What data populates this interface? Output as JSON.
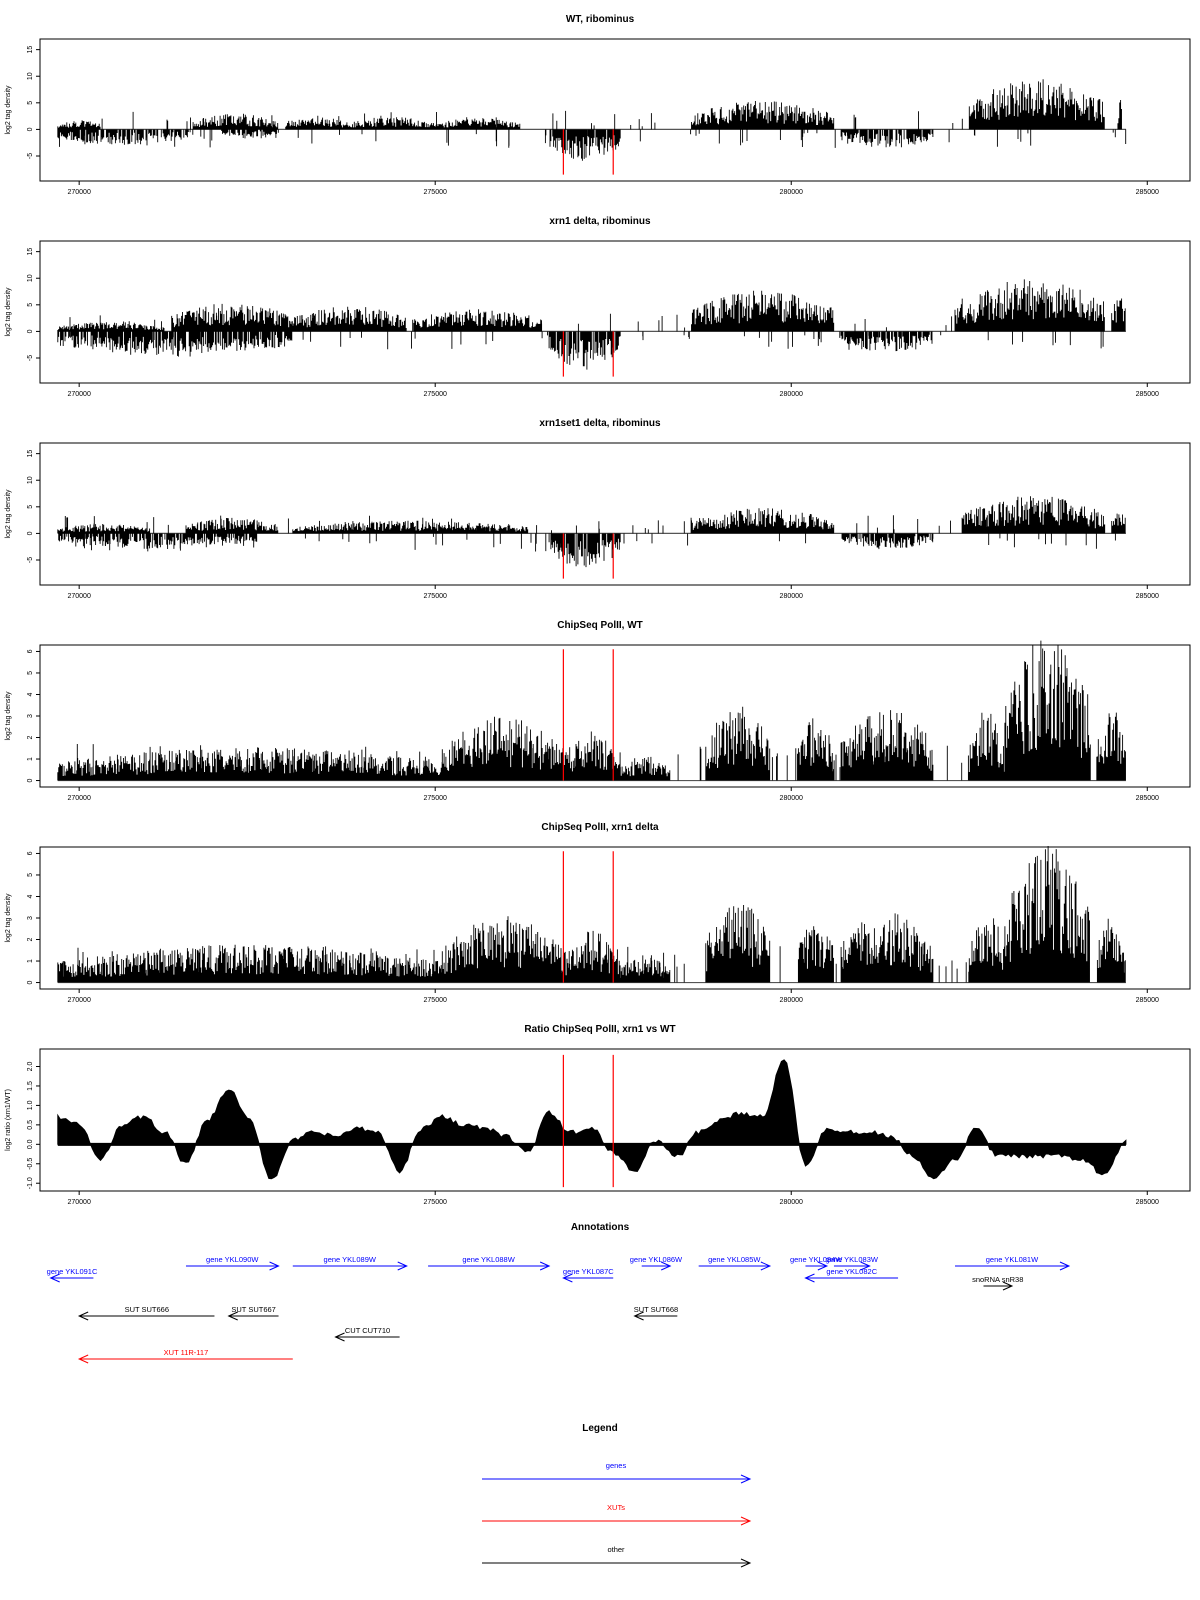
{
  "chart_data": [
    {
      "type": "area",
      "title": "WT, ribominus",
      "ylabel": "log2 tag density",
      "xlim": [
        269450,
        285600
      ],
      "ylim": [
        -9.7,
        17
      ],
      "yticks": [
        -5,
        0,
        5,
        10,
        15
      ],
      "xticks": [
        270000,
        275000,
        280000,
        285000
      ],
      "xtick_labels": [
        "270000",
        "275000",
        "280000",
        "285000"
      ],
      "baseline": 0,
      "red_markers": [
        276800,
        277500
      ],
      "red_marker_range": [
        -8.5,
        0
      ],
      "pos_segments": [
        {
          "x": [
            269700,
            270300
          ],
          "y": 1.5
        },
        {
          "x": [
            271600,
            272800
          ],
          "y": 2.5
        },
        {
          "x": [
            272900,
            273800
          ],
          "y": 2.0
        },
        {
          "x": [
            273800,
            275000
          ],
          "y": 2.0
        },
        {
          "x": [
            275000,
            276200
          ],
          "y": 1.8
        },
        {
          "x": [
            278600,
            280600
          ],
          "y": 4.5
        },
        {
          "x": [
            282500,
            284400
          ],
          "y": 8.0
        },
        {
          "x": [
            284600,
            284650
          ],
          "y": 6.0
        }
      ],
      "neg_segments": [
        {
          "x": [
            269700,
            271600
          ],
          "y": -2.5
        },
        {
          "x": [
            272000,
            272800
          ],
          "y": -1.5
        },
        {
          "x": [
            276600,
            277600
          ],
          "y": -5.0
        },
        {
          "x": [
            280700,
            282000
          ],
          "y": -3.0
        }
      ]
    },
    {
      "type": "area",
      "title": "xrn1 delta, ribominus",
      "ylabel": "log2 tag density",
      "xlim": [
        269450,
        285600
      ],
      "ylim": [
        -9.7,
        17
      ],
      "yticks": [
        -5,
        0,
        5,
        10,
        15
      ],
      "xticks": [
        270000,
        275000,
        280000,
        285000
      ],
      "xtick_labels": [
        "270000",
        "275000",
        "280000",
        "285000"
      ],
      "baseline": 0,
      "red_markers": [
        276800,
        277500
      ],
      "red_marker_range": [
        -8.5,
        0
      ],
      "pos_segments": [
        {
          "x": [
            269700,
            271200
          ],
          "y": 1.5
        },
        {
          "x": [
            271300,
            273000
          ],
          "y": 4.5
        },
        {
          "x": [
            273000,
            274600
          ],
          "y": 4.0
        },
        {
          "x": [
            274700,
            276500
          ],
          "y": 3.5
        },
        {
          "x": [
            278600,
            280600
          ],
          "y": 6.5
        },
        {
          "x": [
            282300,
            284400
          ],
          "y": 8.5
        },
        {
          "x": [
            284500,
            284700
          ],
          "y": 6.0
        }
      ],
      "neg_segments": [
        {
          "x": [
            269700,
            273000
          ],
          "y": -4.0
        },
        {
          "x": [
            276600,
            277600
          ],
          "y": -6.0
        },
        {
          "x": [
            280700,
            282000
          ],
          "y": -3.5
        }
      ]
    },
    {
      "type": "area",
      "title": "xrn1set1 delta, ribominus",
      "ylabel": "log2 tag density",
      "xlim": [
        269450,
        285600
      ],
      "ylim": [
        -9.7,
        17
      ],
      "yticks": [
        -5,
        0,
        5,
        10,
        15
      ],
      "xticks": [
        270000,
        275000,
        280000,
        285000
      ],
      "xtick_labels": [
        "270000",
        "275000",
        "280000",
        "285000"
      ],
      "baseline": 0,
      "red_markers": [
        276800,
        277500
      ],
      "red_marker_range": [
        -8.5,
        0
      ],
      "pos_segments": [
        {
          "x": [
            269700,
            271000
          ],
          "y": 1.5
        },
        {
          "x": [
            271500,
            272800
          ],
          "y": 2.5
        },
        {
          "x": [
            273000,
            276300
          ],
          "y": 2.0
        },
        {
          "x": [
            278600,
            280600
          ],
          "y": 4.0
        },
        {
          "x": [
            282400,
            284400
          ],
          "y": 6.0
        },
        {
          "x": [
            284500,
            284700
          ],
          "y": 4.0
        }
      ],
      "neg_segments": [
        {
          "x": [
            269700,
            272500
          ],
          "y": -2.5
        },
        {
          "x": [
            276600,
            277600
          ],
          "y": -5.5
        },
        {
          "x": [
            280700,
            282000
          ],
          "y": -2.5
        }
      ]
    },
    {
      "type": "area",
      "title": "ChipSeq PolII, WT",
      "ylabel": "log2 tag density",
      "xlim": [
        269450,
        285600
      ],
      "ylim": [
        -0.3,
        6.3
      ],
      "yticks": [
        0,
        1,
        2,
        3,
        4,
        5,
        6
      ],
      "xticks": [
        270000,
        275000,
        280000,
        285000
      ],
      "xtick_labels": [
        "270000",
        "275000",
        "280000",
        "285000"
      ],
      "baseline": 0,
      "red_markers": [
        276800,
        277500
      ],
      "red_marker_range": [
        0,
        6.1
      ],
      "pos_segments": [
        {
          "x": [
            269700,
            275100
          ],
          "y": 1.3
        },
        {
          "x": [
            275100,
            276800
          ],
          "y": 2.5
        },
        {
          "x": [
            276800,
            277600
          ],
          "y": 2.0
        },
        {
          "x": [
            277600,
            278300
          ],
          "y": 1.0
        },
        {
          "x": [
            278800,
            279700
          ],
          "y": 2.9
        },
        {
          "x": [
            280100,
            280600
          ],
          "y": 2.5
        },
        {
          "x": [
            280700,
            282000
          ],
          "y": 2.8
        },
        {
          "x": [
            282500,
            283000
          ],
          "y": 2.8
        },
        {
          "x": [
            283000,
            284200
          ],
          "y": 5.7
        },
        {
          "x": [
            284300,
            284700
          ],
          "y": 2.8
        }
      ],
      "neg_segments": []
    },
    {
      "type": "area",
      "title": "ChipSeq PolII, xrn1 delta",
      "ylabel": "log2 tag density",
      "xlim": [
        269450,
        285600
      ],
      "ylim": [
        -0.3,
        6.3
      ],
      "yticks": [
        0,
        1,
        2,
        3,
        4,
        5,
        6
      ],
      "xticks": [
        270000,
        275000,
        280000,
        285000
      ],
      "xtick_labels": [
        "270000",
        "275000",
        "280000",
        "285000"
      ],
      "baseline": 0,
      "red_markers": [
        276800,
        277500
      ],
      "red_marker_range": [
        0,
        6.1
      ],
      "pos_segments": [
        {
          "x": [
            269700,
            275100
          ],
          "y": 1.5
        },
        {
          "x": [
            275100,
            276800
          ],
          "y": 2.6
        },
        {
          "x": [
            276800,
            277600
          ],
          "y": 2.1
        },
        {
          "x": [
            277600,
            278300
          ],
          "y": 1.0
        },
        {
          "x": [
            278800,
            279700
          ],
          "y": 3.2
        },
        {
          "x": [
            280100,
            280600
          ],
          "y": 2.5
        },
        {
          "x": [
            280700,
            282000
          ],
          "y": 2.8
        },
        {
          "x": [
            282500,
            283000
          ],
          "y": 2.8
        },
        {
          "x": [
            283000,
            284200
          ],
          "y": 5.3
        },
        {
          "x": [
            284300,
            284700
          ],
          "y": 2.6
        }
      ],
      "neg_segments": []
    },
    {
      "type": "line",
      "title": "Ratio ChipSeq PolII, xrn1 vs WT",
      "ylabel": "log2 ratio (xrn1/WT)",
      "xlim": [
        269450,
        285600
      ],
      "ylim": [
        -1.2,
        2.45
      ],
      "yticks": [
        -1.0,
        -0.5,
        0.0,
        0.5,
        1.0,
        1.5,
        2.0
      ],
      "ytick_labels": [
        "-1.0",
        "-0.5",
        "0.0",
        "0.5",
        "1.0",
        "1.5",
        "2.0"
      ],
      "xticks": [
        270000,
        275000,
        280000,
        285000
      ],
      "xtick_labels": [
        "270000",
        "275000",
        "280000",
        "285000"
      ],
      "baseline": 0,
      "red_markers": [
        276800,
        277500
      ],
      "red_marker_range": [
        -1.1,
        2.3
      ],
      "x": [
        269700,
        270000,
        270300,
        270600,
        270900,
        271200,
        271500,
        271800,
        272100,
        272400,
        272700,
        273000,
        273300,
        273600,
        273900,
        274200,
        274500,
        274800,
        275100,
        275400,
        275700,
        276000,
        276300,
        276600,
        276900,
        277200,
        277500,
        277800,
        278100,
        278400,
        278700,
        279000,
        279300,
        279600,
        279900,
        280200,
        280500,
        280800,
        281100,
        281400,
        281700,
        282000,
        282300,
        282600,
        282900,
        283200,
        283500,
        283800,
        284100,
        284400,
        284700
      ],
      "y": [
        0.7,
        0.5,
        -0.4,
        0.5,
        0.7,
        0.3,
        -0.5,
        0.6,
        1.4,
        0.6,
        -0.9,
        0.1,
        0.3,
        0.2,
        0.4,
        0.3,
        -0.7,
        0.4,
        0.7,
        0.5,
        0.4,
        0.2,
        -0.2,
        0.8,
        0.3,
        0.4,
        -0.2,
        -0.7,
        0.1,
        -0.3,
        0.3,
        0.6,
        0.8,
        0.7,
        2.2,
        -0.5,
        0.4,
        0.3,
        0.3,
        0.2,
        -0.3,
        -0.9,
        -0.4,
        0.4,
        -0.3,
        -0.3,
        -0.3,
        -0.3,
        -0.4,
        -0.8,
        0.1
      ]
    }
  ],
  "annotations": {
    "title": "Annotations",
    "xlim": [
      269450,
      285600
    ],
    "tracks": [
      {
        "label": "gene YKL091C",
        "x1": 270200,
        "x2": 269600,
        "row": 0,
        "color": "#0000ff"
      },
      {
        "label": "gene YKL090W",
        "x1": 271500,
        "x2": 272800,
        "row": -1,
        "color": "#0000ff"
      },
      {
        "label": "gene YKL089W",
        "x1": 273000,
        "x2": 274600,
        "row": -1,
        "color": "#0000ff"
      },
      {
        "label": "gene YKL088W",
        "x1": 274900,
        "x2": 276600,
        "row": -1,
        "color": "#0000ff"
      },
      {
        "label": "gene YKL087C",
        "x1": 277500,
        "x2": 276800,
        "row": 0,
        "color": "#0000ff"
      },
      {
        "label": "gene YKL086W",
        "x1": 277900,
        "x2": 278300,
        "row": -1,
        "color": "#0000ff"
      },
      {
        "label": "gene YKL085W",
        "x1": 278700,
        "x2": 279700,
        "row": -1,
        "color": "#0000ff"
      },
      {
        "label": "gene YKL084W",
        "x1": 280200,
        "x2": 280500,
        "row": -1,
        "color": "#0000ff"
      },
      {
        "label": "gene YKL083W",
        "x1": 280600,
        "x2": 281100,
        "row": -1,
        "color": "#0000ff"
      },
      {
        "label": "gene YKL082C",
        "x1": 281500,
        "x2": 280200,
        "row": 0,
        "color": "#0000ff"
      },
      {
        "label": "gene YKL081W",
        "x1": 282300,
        "x2": 283900,
        "row": -1,
        "color": "#0000ff"
      },
      {
        "label": "snoRNA snR38",
        "x1": 282700,
        "x2": 283100,
        "row": 1,
        "color": "#000000"
      },
      {
        "label": "SUT SUT666",
        "x1": 271900,
        "x2": 270000,
        "row": 2,
        "color": "#000000"
      },
      {
        "label": "SUT SUT667",
        "x1": 272800,
        "x2": 272100,
        "row": 2,
        "color": "#000000"
      },
      {
        "label": "CUT CUT710",
        "x1": 274500,
        "x2": 273600,
        "row": 3,
        "color": "#000000"
      },
      {
        "label": "SUT SUT668",
        "x1": 278400,
        "x2": 277800,
        "row": 2,
        "color": "#000000"
      },
      {
        "label": "XUT 11R-117",
        "x1": 273000,
        "x2": 270000,
        "row": 4,
        "color": "#ff0000"
      }
    ]
  },
  "legend": {
    "title": "Legend",
    "items": [
      {
        "label": "genes",
        "color": "#0000ff"
      },
      {
        "label": "XUTs",
        "color": "#ff0000"
      },
      {
        "label": "other",
        "color": "#000000"
      }
    ]
  }
}
